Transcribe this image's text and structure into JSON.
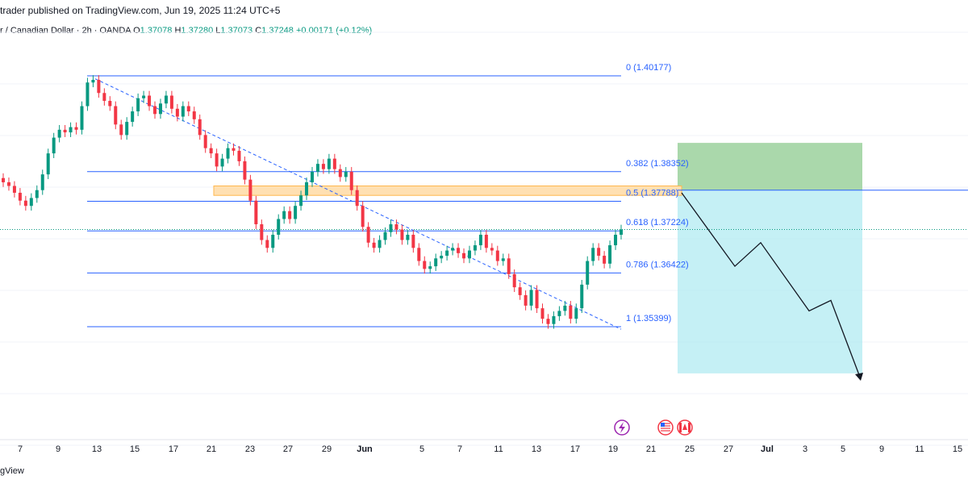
{
  "header": {
    "published_text": "trader published on TradingView.com, Jun 19, 2025 11:24 UTC+5"
  },
  "symbol": {
    "name": "r / Canadian Dollar · 2h · OANDA",
    "open_label": "O",
    "open": "1.37078",
    "high_label": "H",
    "high": "1.37280",
    "low_label": "L",
    "low": "1.37073",
    "close_label": "C",
    "close": "1.37248",
    "change": "+0.00171 (+0.12%)"
  },
  "colors": {
    "up": "#089981",
    "down": "#f23645",
    "fib": "#2962ff",
    "profit_zone": "#a5d6a7",
    "loss_zone": "#b2ebf2",
    "resistance": "#ffb74d"
  },
  "fib_levels": [
    {
      "label": "0 (1.40177)",
      "ratio": 0,
      "price": 1.40177
    },
    {
      "label": "0.382 (1.38352)",
      "ratio": 0.382,
      "price": 1.38352
    },
    {
      "label": "0.5 (1.37788)",
      "ratio": 0.5,
      "price": 1.37788
    },
    {
      "label": "0.618 (1.37224)",
      "ratio": 0.618,
      "price": 1.37224
    },
    {
      "label": "0.786 (1.36422)",
      "ratio": 0.786,
      "price": 1.36422
    },
    {
      "label": "1 (1.35399)",
      "ratio": 1,
      "price": 1.35399
    }
  ],
  "x_axis": {
    "ticks": [
      "7",
      "9",
      "13",
      "15",
      "17",
      "21",
      "23",
      "27",
      "29",
      "Jun",
      "5",
      "7",
      "11",
      "13",
      "17",
      "19",
      "21",
      "25",
      "27",
      "Jul",
      "3",
      "5",
      "9",
      "11",
      "15"
    ]
  },
  "event_icons": [
    "lightning-icon",
    "us-flag-icon",
    "canada-flag-icon"
  ],
  "footer": {
    "logo_text": "gView"
  },
  "chart_data": {
    "type": "candlestick",
    "instrument": "r / Canadian Dollar",
    "timeframe": "2h",
    "close_prices": [
      1.3815,
      1.3808,
      1.3795,
      1.378,
      1.377,
      1.3785,
      1.38,
      1.383,
      1.387,
      1.39,
      1.3915,
      1.391,
      1.392,
      1.3915,
      1.396,
      1.4005,
      1.401,
      1.3985,
      1.397,
      1.396,
      1.3925,
      1.3905,
      1.393,
      1.395,
      1.3975,
      1.398,
      1.396,
      1.3945,
      1.3965,
      1.398,
      1.3955,
      1.394,
      1.396,
      1.395,
      1.3935,
      1.3905,
      1.388,
      1.387,
      1.3845,
      1.386,
      1.388,
      1.3875,
      1.3855,
      1.382,
      1.378,
      1.3735,
      1.3705,
      1.369,
      1.3715,
      1.3745,
      1.376,
      1.3745,
      1.377,
      1.379,
      1.3815,
      1.3835,
      1.385,
      1.384,
      1.386,
      1.384,
      1.3825,
      1.3835,
      1.38,
      1.377,
      1.373,
      1.37,
      1.369,
      1.3705,
      1.372,
      1.3735,
      1.3725,
      1.3705,
      1.3715,
      1.369,
      1.3665,
      1.365,
      1.3655,
      1.367,
      1.3675,
      1.3685,
      1.369,
      1.368,
      1.367,
      1.3685,
      1.3695,
      1.3715,
      1.369,
      1.3685,
      1.3665,
      1.367,
      1.364,
      1.3615,
      1.36,
      1.358,
      1.361,
      1.3575,
      1.3555,
      1.3545,
      1.356,
      1.357,
      1.358,
      1.3555,
      1.3575,
      1.362,
      1.3665,
      1.369,
      1.3675,
      1.366,
      1.3695,
      1.3715,
      1.3725
    ],
    "resistance_zone": [
      1.379,
      1.3808
    ],
    "fib_levels": [
      1.40177,
      1.38352,
      1.37788,
      1.37224,
      1.36422,
      1.35399
    ],
    "projection_path": [
      1.3795,
      1.3655,
      1.37,
      1.357,
      1.359,
      1.344
    ],
    "position": {
      "target": 1.3451,
      "entry": 1.38,
      "stop": 1.389
    }
  }
}
